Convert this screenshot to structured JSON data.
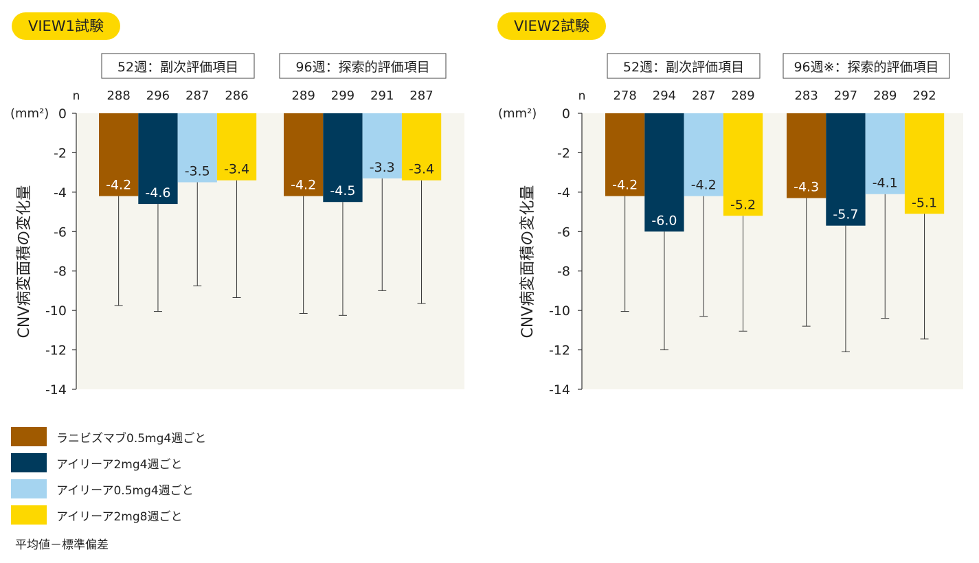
{
  "colors": {
    "ranibizumab_0_5mg_4w": "#a05a00",
    "aflibercept_2mg_4w": "#003a5c",
    "aflibercept_0_5mg_4w": "#a5d4f0",
    "aflibercept_2mg_8w": "#fdd800",
    "plot_background": "#f6f5ee"
  },
  "legend": [
    {
      "label": "ラニビズマブ0.5mg4週ごと",
      "color": "#a05a00"
    },
    {
      "label": "アイリーア2mg4週ごと",
      "color": "#003a5c"
    },
    {
      "label": "アイリーア0.5mg4週ごと",
      "color": "#a5d4f0"
    },
    {
      "label": "アイリーア2mg8週ごと",
      "color": "#fdd800"
    }
  ],
  "footnote": "平均値－標準偏差",
  "chart_data": [
    {
      "type": "bar",
      "title": "VIEW1試験",
      "ylabel": "CNV病変面積の変化量",
      "unit": "(mm²)",
      "ylim": [
        -14,
        0
      ],
      "yticks": [
        "0",
        "-2",
        "-4",
        "-6",
        "-8",
        "-10",
        "-12",
        "-14"
      ],
      "n_label": "n",
      "groups": [
        {
          "label": "52週：副次評価項目",
          "n": [
            "288",
            "296",
            "287",
            "286"
          ],
          "values": [
            -4.2,
            -4.6,
            -3.5,
            -3.4
          ],
          "value_labels": [
            "-4.2",
            "-4.6",
            "-3.5",
            "-3.4"
          ],
          "error_lower": [
            -9.75,
            -10.05,
            -8.75,
            -9.35
          ]
        },
        {
          "label": "96週：探索的評価項目",
          "n": [
            "289",
            "299",
            "291",
            "287"
          ],
          "values": [
            -4.2,
            -4.5,
            -3.3,
            -3.4
          ],
          "value_labels": [
            "-4.2",
            "-4.5",
            "-3.3",
            "-3.4"
          ],
          "error_lower": [
            -10.15,
            -10.25,
            -9.0,
            -9.65
          ]
        }
      ]
    },
    {
      "type": "bar",
      "title": "VIEW2試験",
      "ylabel": "CNV病変面積の変化量",
      "unit": "(mm²)",
      "ylim": [
        -14,
        0
      ],
      "yticks": [
        "0",
        "-2",
        "-4",
        "-6",
        "-8",
        "-10",
        "-12",
        "-14"
      ],
      "n_label": "n",
      "groups": [
        {
          "label": "52週：副次評価項目",
          "n": [
            "278",
            "294",
            "287",
            "289"
          ],
          "values": [
            -4.2,
            -6.0,
            -4.2,
            -5.2
          ],
          "value_labels": [
            "-4.2",
            "-6.0",
            "-4.2",
            "-5.2"
          ],
          "error_lower": [
            -10.05,
            -12.0,
            -10.3,
            -11.05
          ]
        },
        {
          "label": "96週※：探索的評価項目",
          "n": [
            "283",
            "297",
            "289",
            "292"
          ],
          "values": [
            -4.3,
            -5.7,
            -4.1,
            -5.1
          ],
          "value_labels": [
            "-4.3",
            "-5.7",
            "-4.1",
            "-5.1"
          ],
          "error_lower": [
            -10.8,
            -12.1,
            -10.4,
            -11.45
          ]
        }
      ]
    }
  ]
}
